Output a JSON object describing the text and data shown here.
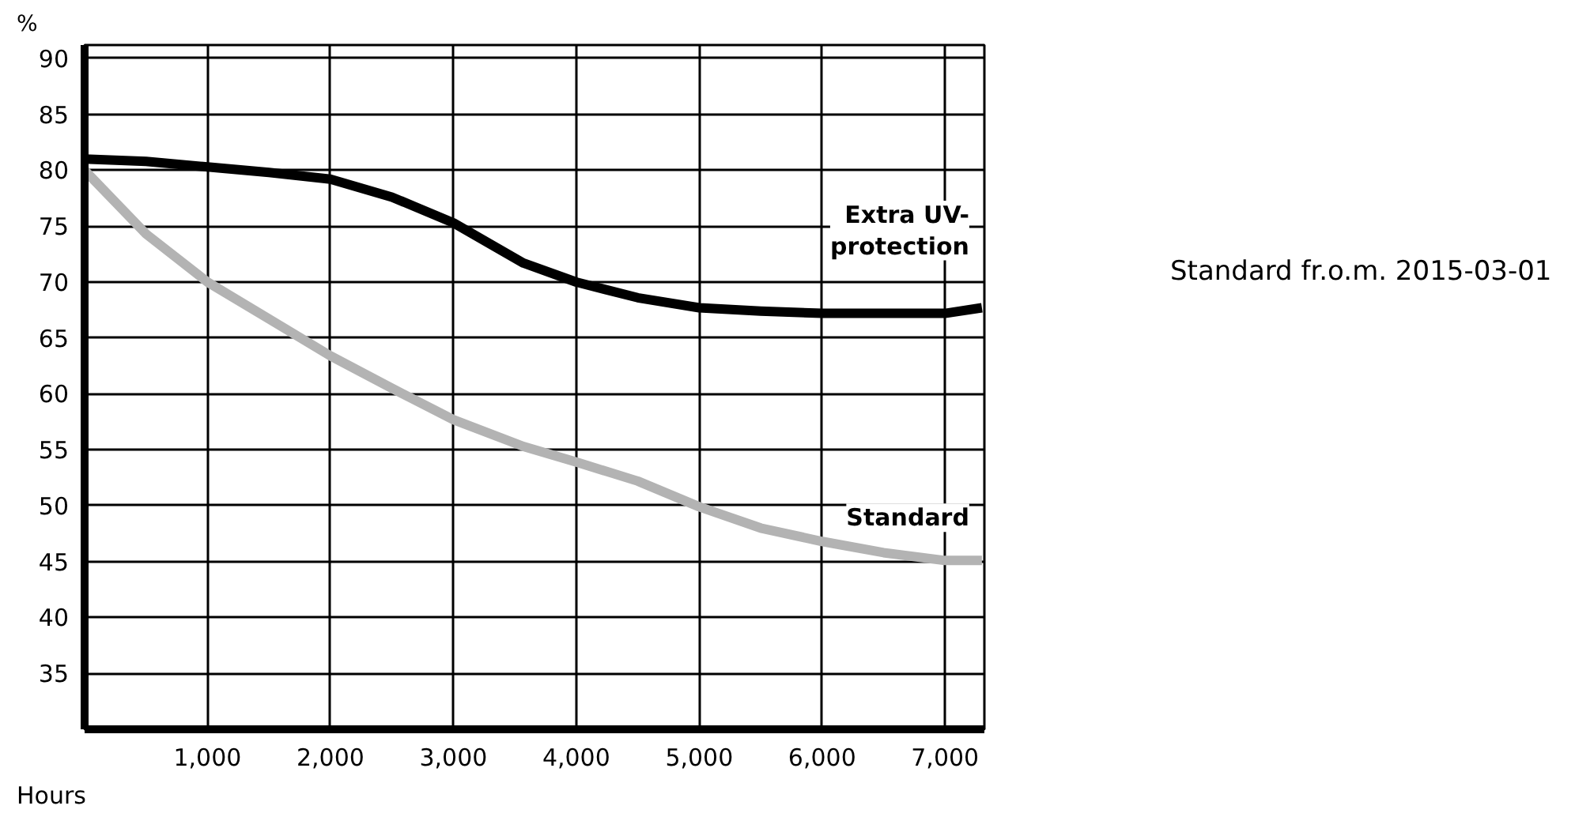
{
  "chart_data": {
    "type": "line",
    "xlabel": "Hours",
    "ylabel": "%",
    "x": [
      0,
      500,
      1000,
      1500,
      2000,
      2500,
      3000,
      3570,
      4000,
      4500,
      5000,
      5500,
      6000,
      6500,
      7000,
      7300
    ],
    "series": [
      {
        "name": "Extra UV-\nprotection",
        "color": "#000000",
        "values": [
          81,
          80.8,
          80.3,
          79.8,
          79.2,
          77.6,
          75.3,
          71.7,
          70.0,
          68.6,
          67.7,
          67.4,
          67.2,
          67.2,
          67.2,
          67.7
        ]
      },
      {
        "name": "Standard",
        "color": "#b3b3b3",
        "values": [
          80,
          74.3,
          70.0,
          66.7,
          63.4,
          60.5,
          57.7,
          55.3,
          53.9,
          52.2,
          49.9,
          48.0,
          46.8,
          45.8,
          45.1,
          45.1
        ]
      }
    ],
    "xlim": [
      0,
      7320
    ],
    "ylim": [
      30,
      91.2
    ],
    "xticks": [
      {
        "value": 1000,
        "label": "1,000"
      },
      {
        "value": 2000,
        "label": "2,000"
      },
      {
        "value": 3000,
        "label": "3,000"
      },
      {
        "value": 4000,
        "label": "4,000"
      },
      {
        "value": 5000,
        "label": "5,000"
      },
      {
        "value": 6000,
        "label": "6,000"
      },
      {
        "value": 7000,
        "label": "7,000"
      }
    ],
    "yticks": [
      35,
      40,
      45,
      50,
      55,
      60,
      65,
      70,
      75,
      80,
      85,
      90
    ],
    "grid": true,
    "marker": "none",
    "line_style": "solid",
    "annotations": [
      "Standard fr.o.m. 2015-03-01"
    ]
  }
}
